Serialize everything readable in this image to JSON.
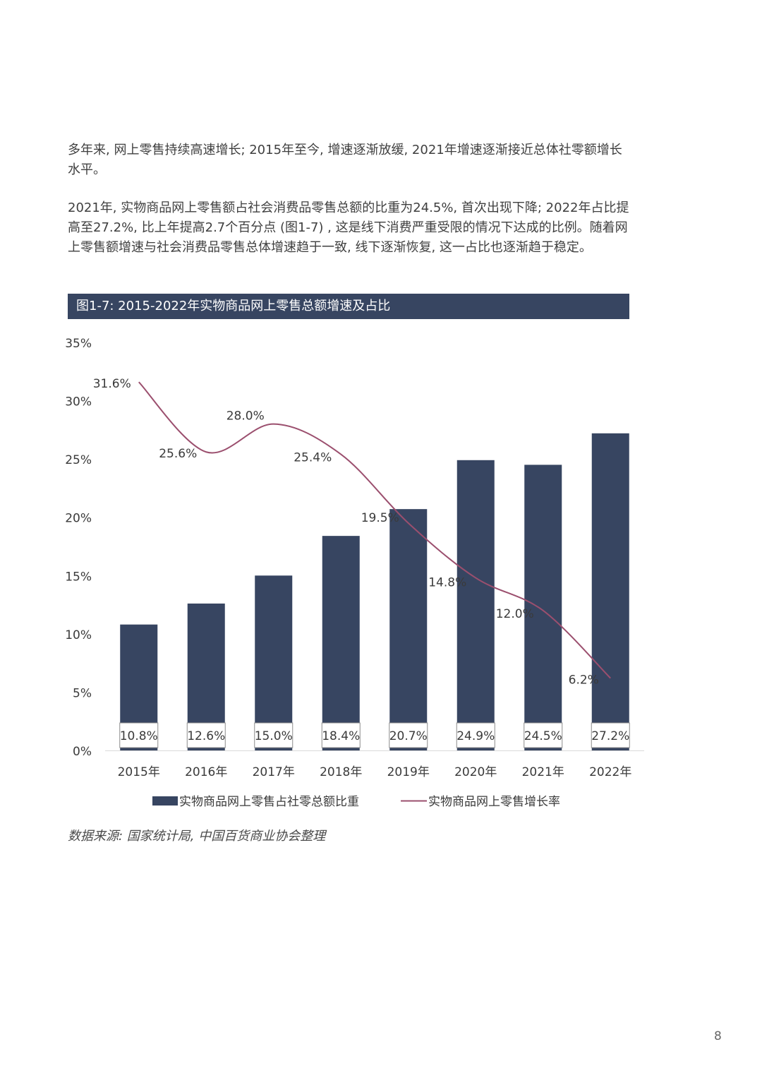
{
  "paragraphs": [
    "多年来, 网上零售持续高速增长; 2015年至今, 增速逐渐放缓, 2021年增速逐渐接近总体社零额增长水平。",
    "2021年, 实物商品网上零售额占社会消费品零售总额的比重为24.5%, 首次出现下降; 2022年占比提高至27.2%, 比上年提高2.7个百分点 (图1-7) , 这是线下消费严重受限的情况下达成的比例。随着网上零售额增速与社会消费品零售总体增速趋于一致, 线下逐渐恢复, 这一占比也逐渐趋于稳定。"
  ],
  "figure_title": "图1-7: 2015-2022年实物商品网上零售总额增速及占比",
  "source": "数据来源: 国家统计局, 中国百货商业协会整理",
  "page_number": "8",
  "colors": {
    "bar": "#374561",
    "line": "#9b4f6e",
    "title_bar": "#374561"
  },
  "chart_data": {
    "type": "bar",
    "categories": [
      "2015年",
      "2016年",
      "2017年",
      "2018年",
      "2019年",
      "2020年",
      "2021年",
      "2022年"
    ],
    "series": [
      {
        "name": "实物商品网上零售占社零总额比重",
        "type": "bar",
        "values": [
          10.8,
          12.6,
          15.0,
          18.4,
          20.7,
          24.9,
          24.5,
          27.2
        ],
        "labels": [
          "10.8%",
          "12.6%",
          "15.0%",
          "18.4%",
          "20.7%",
          "24.9%",
          "24.5%",
          "27.2%"
        ]
      },
      {
        "name": "实物商品网上零售增长率",
        "type": "line",
        "values": [
          31.6,
          25.6,
          28.0,
          25.4,
          19.5,
          14.8,
          12.0,
          6.2
        ],
        "labels": [
          "31.6%",
          "25.6%",
          "28.0%",
          "25.4%",
          "19.5%",
          "14.8%",
          "12.0%",
          "6.2%"
        ]
      }
    ],
    "yticks": [
      "0%",
      "5%",
      "10%",
      "15%",
      "20%",
      "25%",
      "30%",
      "35%"
    ],
    "ylim": [
      0,
      35
    ],
    "legend": "bottom",
    "grid": false
  }
}
